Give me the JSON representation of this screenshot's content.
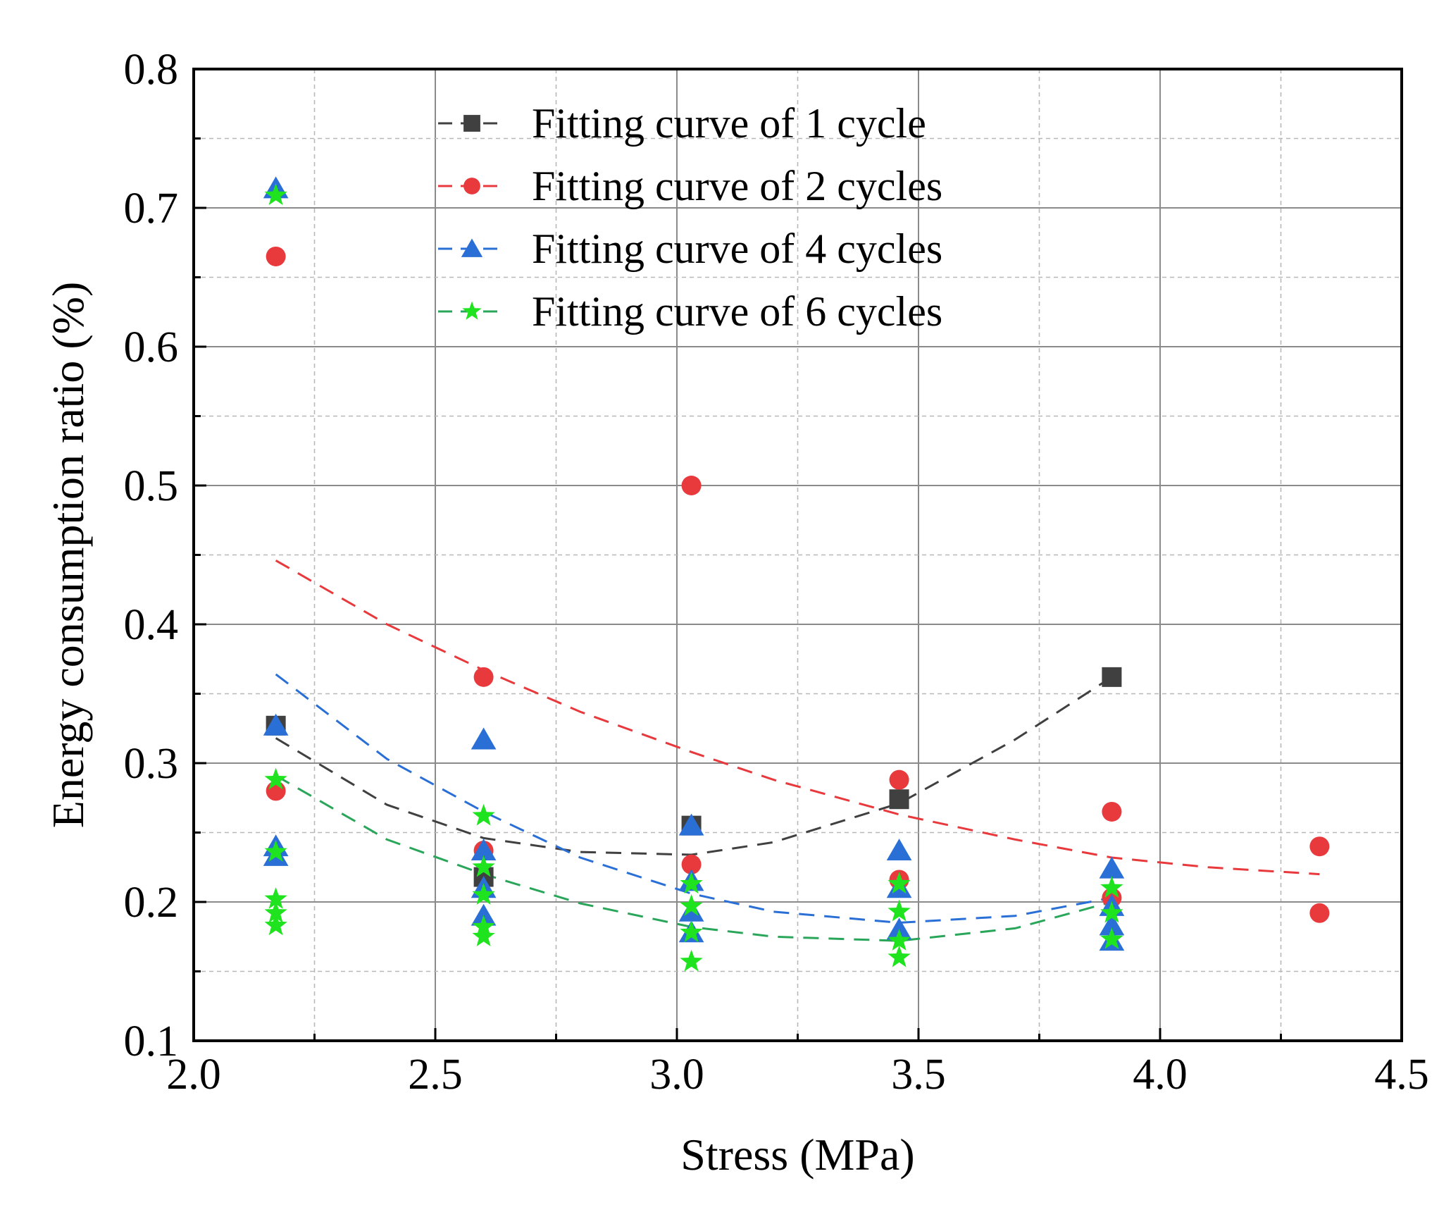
{
  "chart_data": {
    "type": "scatter",
    "title": "",
    "xlabel": "Stress (MPa)",
    "ylabel": "Energy consumption ratio (%)",
    "xlim": [
      2.0,
      4.5
    ],
    "ylim": [
      0.1,
      0.8
    ],
    "x_ticks": [
      2.0,
      2.5,
      3.0,
      3.5,
      4.0,
      4.5
    ],
    "x_tick_labels": [
      "2.0",
      "2.5",
      "3.0",
      "3.5",
      "4.0",
      "4.5"
    ],
    "x_minor_ticks": [
      2.25,
      2.75,
      3.25,
      3.75,
      4.25
    ],
    "y_ticks": [
      0.1,
      0.2,
      0.3,
      0.4,
      0.5,
      0.6,
      0.7,
      0.8
    ],
    "y_tick_labels": [
      "0.1",
      "0.2",
      "0.3",
      "0.4",
      "0.5",
      "0.6",
      "0.7",
      "0.8"
    ],
    "y_minor_ticks": [
      0.15,
      0.25,
      0.35,
      0.45,
      0.55,
      0.65,
      0.75
    ],
    "grid": true,
    "legend_position": "top-center",
    "series": [
      {
        "name": "Fitting curve of 1 cycle",
        "marker": "square",
        "color": "#404040",
        "line_color": "#404040",
        "points": [
          [
            2.17,
            0.327
          ],
          [
            2.6,
            0.218
          ],
          [
            3.03,
            0.255
          ],
          [
            3.46,
            0.274
          ],
          [
            3.9,
            0.362
          ]
        ],
        "fit": {
          "x": [
            2.17,
            2.4,
            2.6,
            2.8,
            3.03,
            3.2,
            3.46,
            3.7,
            3.9
          ],
          "y": [
            0.318,
            0.27,
            0.246,
            0.236,
            0.234,
            0.243,
            0.271,
            0.317,
            0.362
          ]
        }
      },
      {
        "name": "Fitting curve of 2 cycles",
        "marker": "circle",
        "color": "#e8393d",
        "line_color": "#e8393d",
        "points": [
          [
            2.17,
            0.665
          ],
          [
            2.17,
            0.28
          ],
          [
            2.6,
            0.362
          ],
          [
            2.6,
            0.237
          ],
          [
            3.03,
            0.5
          ],
          [
            3.03,
            0.227
          ],
          [
            3.46,
            0.288
          ],
          [
            3.46,
            0.216
          ],
          [
            3.9,
            0.265
          ],
          [
            3.9,
            0.203
          ],
          [
            4.33,
            0.24
          ],
          [
            4.33,
            0.192
          ]
        ],
        "fit": {
          "x": [
            2.17,
            2.4,
            2.6,
            2.8,
            3.03,
            3.2,
            3.46,
            3.7,
            3.9,
            4.1,
            4.33
          ],
          "y": [
            0.446,
            0.4,
            0.367,
            0.337,
            0.308,
            0.288,
            0.263,
            0.245,
            0.232,
            0.225,
            0.22
          ]
        }
      },
      {
        "name": "Fitting curve of 4 cycles",
        "marker": "triangle",
        "color": "#2a6fd6",
        "line_color": "#2a6fd6",
        "points": [
          [
            2.17,
            0.714
          ],
          [
            2.17,
            0.327
          ],
          [
            2.17,
            0.24
          ],
          [
            2.17,
            0.233
          ],
          [
            2.6,
            0.317
          ],
          [
            2.6,
            0.237
          ],
          [
            2.6,
            0.21
          ],
          [
            2.6,
            0.19
          ],
          [
            3.03,
            0.255
          ],
          [
            3.03,
            0.215
          ],
          [
            3.03,
            0.193
          ],
          [
            3.03,
            0.178
          ],
          [
            3.46,
            0.237
          ],
          [
            3.46,
            0.21
          ],
          [
            3.46,
            0.18
          ],
          [
            3.9,
            0.224
          ],
          [
            3.9,
            0.197
          ],
          [
            3.9,
            0.183
          ],
          [
            3.9,
            0.172
          ]
        ],
        "fit": {
          "x": [
            2.17,
            2.4,
            2.6,
            2.8,
            3.03,
            3.2,
            3.46,
            3.7,
            3.9
          ],
          "y": [
            0.364,
            0.303,
            0.265,
            0.232,
            0.206,
            0.193,
            0.185,
            0.19,
            0.203
          ]
        }
      },
      {
        "name": "Fitting curve of 6 cycles",
        "marker": "star",
        "color": "#1ee31e",
        "line_color": "#2aa65a",
        "points": [
          [
            2.17,
            0.709
          ],
          [
            2.17,
            0.288
          ],
          [
            2.17,
            0.236
          ],
          [
            2.17,
            0.202
          ],
          [
            2.17,
            0.192
          ],
          [
            2.17,
            0.183
          ],
          [
            2.6,
            0.262
          ],
          [
            2.6,
            0.225
          ],
          [
            2.6,
            0.205
          ],
          [
            2.6,
            0.182
          ],
          [
            2.6,
            0.175
          ],
          [
            3.03,
            0.213
          ],
          [
            3.03,
            0.197
          ],
          [
            3.03,
            0.178
          ],
          [
            3.03,
            0.157
          ],
          [
            3.46,
            0.213
          ],
          [
            3.46,
            0.193
          ],
          [
            3.46,
            0.172
          ],
          [
            3.46,
            0.16
          ],
          [
            3.9,
            0.21
          ],
          [
            3.9,
            0.192
          ],
          [
            3.9,
            0.173
          ]
        ],
        "fit": {
          "x": [
            2.17,
            2.4,
            2.6,
            2.8,
            3.03,
            3.2,
            3.46,
            3.7,
            3.9
          ],
          "y": [
            0.291,
            0.245,
            0.22,
            0.199,
            0.182,
            0.175,
            0.172,
            0.181,
            0.2
          ]
        }
      }
    ]
  }
}
